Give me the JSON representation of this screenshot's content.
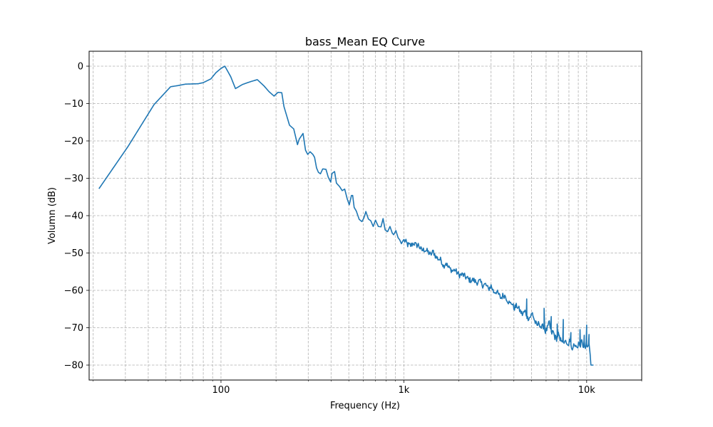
{
  "chart_data": {
    "type": "line",
    "title": "bass_Mean EQ Curve",
    "xlabel": "Frequency (Hz)",
    "ylabel": "Volumn (dB)",
    "x_scale": "log",
    "xlim": [
      19,
      20000
    ],
    "ylim": [
      -84,
      4
    ],
    "x_ticks": [
      {
        "value": 100,
        "label": "100"
      },
      {
        "value": 1000,
        "label": "1k"
      },
      {
        "value": 10000,
        "label": "10k"
      }
    ],
    "y_ticks": [
      {
        "value": 0,
        "label": "0"
      },
      {
        "value": -10,
        "label": "−10"
      },
      {
        "value": -20,
        "label": "−20"
      },
      {
        "value": -30,
        "label": "−30"
      },
      {
        "value": -40,
        "label": "−40"
      },
      {
        "value": -50,
        "label": "−50"
      },
      {
        "value": -60,
        "label": "−60"
      },
      {
        "value": -70,
        "label": "−70"
      },
      {
        "value": -80,
        "label": "−80"
      }
    ],
    "grid": {
      "major": true,
      "minor": true,
      "style": "dashed"
    },
    "colors": {
      "line": "#1f77b4",
      "grid": "#b0b0b0",
      "axes": "#000000"
    },
    "series": [
      {
        "points": [
          [
            21.5,
            -32.8
          ],
          [
            31,
            -21.5
          ],
          [
            43,
            -10.3
          ],
          [
            53,
            -5.5
          ],
          [
            58,
            -5.2
          ],
          [
            64,
            -4.8
          ],
          [
            75,
            -4.7
          ],
          [
            80,
            -4.4
          ],
          [
            88,
            -3.4
          ],
          [
            94,
            -1.7
          ],
          [
            100,
            -0.6
          ],
          [
            105,
            0.0
          ],
          [
            113,
            -2.8
          ],
          [
            120,
            -6.0
          ],
          [
            131,
            -4.9
          ],
          [
            140,
            -4.4
          ],
          [
            146,
            -4.1
          ],
          [
            158,
            -3.6
          ],
          [
            172,
            -5.3
          ],
          [
            183,
            -6.8
          ],
          [
            195,
            -8.0
          ],
          [
            205,
            -7.0
          ],
          [
            215,
            -7.1
          ],
          [
            221,
            -10.8
          ],
          [
            226,
            -12.4
          ],
          [
            237,
            -15.8
          ],
          [
            250,
            -16.8
          ],
          [
            262,
            -21.0
          ],
          [
            268,
            -19.5
          ],
          [
            281,
            -18.0
          ],
          [
            290,
            -22.5
          ],
          [
            298,
            -23.6
          ],
          [
            307,
            -22.9
          ],
          [
            318,
            -23.6
          ],
          [
            325,
            -24.4
          ],
          [
            333,
            -27.2
          ],
          [
            341,
            -28.4
          ],
          [
            350,
            -28.8
          ],
          [
            360,
            -27.5
          ],
          [
            375,
            -27.6
          ],
          [
            386,
            -29.7
          ],
          [
            398,
            -31.0
          ],
          [
            405,
            -28.7
          ],
          [
            418,
            -28.2
          ],
          [
            428,
            -31.3
          ],
          [
            445,
            -32.2
          ],
          [
            460,
            -33.3
          ],
          [
            475,
            -32.9
          ],
          [
            490,
            -35.5
          ],
          [
            503,
            -37.1
          ],
          [
            517,
            -34.6
          ],
          [
            525,
            -34.6
          ],
          [
            535,
            -37.8
          ],
          [
            550,
            -38.8
          ],
          [
            570,
            -41.0
          ],
          [
            590,
            -41.6
          ],
          [
            605,
            -40.6
          ],
          [
            620,
            -38.9
          ],
          [
            640,
            -40.9
          ],
          [
            660,
            -41.4
          ],
          [
            680,
            -42.9
          ],
          [
            700,
            -41.2
          ],
          [
            725,
            -42.9
          ],
          [
            750,
            -43.0
          ],
          [
            770,
            -40.8
          ],
          [
            790,
            -43.8
          ],
          [
            815,
            -44.3
          ],
          [
            840,
            -42.9
          ],
          [
            865,
            -44.7
          ],
          [
            880,
            -45.1
          ],
          [
            905,
            -44.0
          ],
          [
            930,
            -45.9
          ],
          [
            950,
            -46.5
          ],
          [
            970,
            -47.5
          ],
          [
            995,
            -46.5
          ],
          [
            1020,
            -46.9
          ],
          [
            1050,
            -47.8
          ],
          [
            1090,
            -48.0
          ],
          [
            1130,
            -47.3
          ],
          [
            1170,
            -48.0
          ],
          [
            1200,
            -47.8
          ],
          [
            1250,
            -49.3
          ],
          [
            1300,
            -49.1
          ],
          [
            1350,
            -49.6
          ],
          [
            1400,
            -50.5
          ],
          [
            1450,
            -49.6
          ],
          [
            1500,
            -51.1
          ],
          [
            1550,
            -51.6
          ],
          [
            1600,
            -51.9
          ],
          [
            1650,
            -53.5
          ],
          [
            1700,
            -52.6
          ],
          [
            1750,
            -53.9
          ],
          [
            1800,
            -54.3
          ],
          [
            1850,
            -54.8
          ],
          [
            1900,
            -54.5
          ],
          [
            1950,
            -55.2
          ],
          [
            2000,
            -55.9
          ],
          [
            2100,
            -55.8
          ],
          [
            2200,
            -56.6
          ],
          [
            2300,
            -57.3
          ],
          [
            2400,
            -57.2
          ],
          [
            2500,
            -57.9
          ],
          [
            2600,
            -57.6
          ],
          [
            2700,
            -58.6
          ],
          [
            2800,
            -58.4
          ],
          [
            2900,
            -59.7
          ],
          [
            3000,
            -58.8
          ],
          [
            3100,
            -60.4
          ],
          [
            3200,
            -60.3
          ],
          [
            3300,
            -61.1
          ],
          [
            3400,
            -62.1
          ],
          [
            3500,
            -61.2
          ],
          [
            3600,
            -61.6
          ],
          [
            3700,
            -62.7
          ],
          [
            3800,
            -63.6
          ],
          [
            3900,
            -63.3
          ],
          [
            4000,
            -64.8
          ],
          [
            4150,
            -64.1
          ],
          [
            4300,
            -65.3
          ],
          [
            4450,
            -66.4
          ],
          [
            4600,
            -65.6
          ],
          [
            4750,
            -67.4
          ],
          [
            4900,
            -67.2
          ],
          [
            5050,
            -66.1
          ],
          [
            5200,
            -68.3
          ],
          [
            5350,
            -69.5
          ],
          [
            5500,
            -68.7
          ],
          [
            5650,
            -70.0
          ],
          [
            5800,
            -69.6
          ],
          [
            5950,
            -71.0
          ],
          [
            6100,
            -70.2
          ],
          [
            6250,
            -68.6
          ],
          [
            6400,
            -71.6
          ],
          [
            6550,
            -71.0
          ],
          [
            6700,
            -72.5
          ],
          [
            6850,
            -72.9
          ],
          [
            7000,
            -71.7
          ],
          [
            7150,
            -73.5
          ],
          [
            7300,
            -72.9
          ],
          [
            7450,
            -74.3
          ],
          [
            7600,
            -73.3
          ],
          [
            7750,
            -74.6
          ],
          [
            7900,
            -75.0
          ],
          [
            8050,
            -73.6
          ],
          [
            8200,
            -74.9
          ],
          [
            8350,
            -75.4
          ],
          [
            8500,
            -73.9
          ],
          [
            8650,
            -75.0
          ],
          [
            8800,
            -74.4
          ],
          [
            8950,
            -75.6
          ],
          [
            9100,
            -73.5
          ],
          [
            9250,
            -74.8
          ],
          [
            9400,
            -73.2
          ],
          [
            9550,
            -75.3
          ],
          [
            9700,
            -74.1
          ],
          [
            9850,
            -75.8
          ],
          [
            10000,
            -74.0
          ],
          [
            10150,
            -75.1
          ],
          [
            10300,
            -74.6
          ],
          [
            10450,
            -76.4
          ],
          [
            10550,
            -80.0
          ],
          [
            10900,
            -80.0
          ]
        ],
        "spikes": [
          [
            4700,
            -62.3
          ],
          [
            5850,
            -64.8
          ],
          [
            6400,
            -67.0
          ],
          [
            6900,
            -69.0
          ],
          [
            7450,
            -67.8
          ],
          [
            8200,
            -71.3
          ],
          [
            9200,
            -70.5
          ],
          [
            9700,
            -72.0
          ],
          [
            10000,
            -69.3
          ],
          [
            10300,
            -71.8
          ]
        ],
        "noise_start_hz": 1000,
        "noise_db": 0.8
      }
    ]
  }
}
